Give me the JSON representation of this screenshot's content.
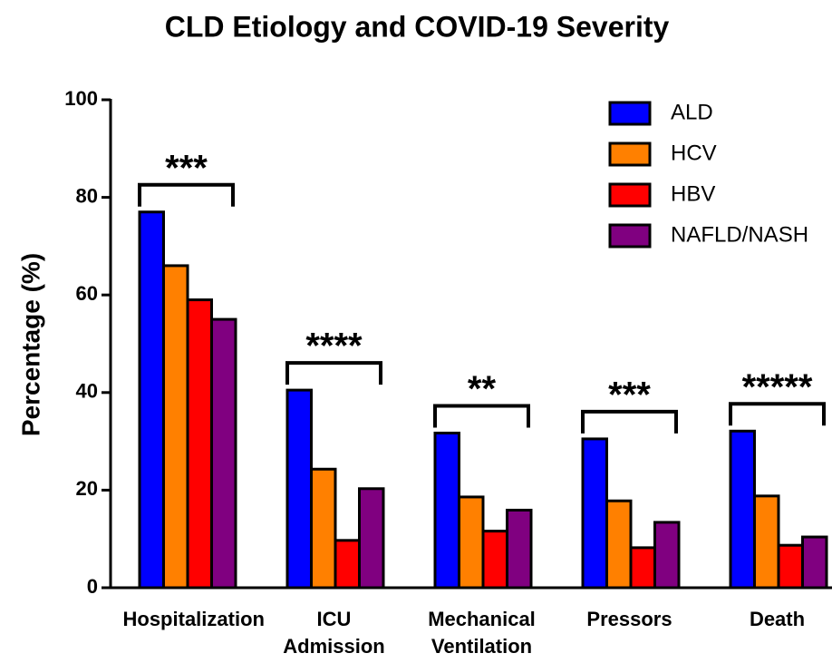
{
  "chart_data": {
    "type": "bar",
    "title": "CLD Etiology and COVID-19 Severity",
    "y_label": "Percentage (%)",
    "categories": [
      "Hospitalization",
      "ICU Admission",
      "Mechanical Ventilation",
      "Pressors",
      "Death"
    ],
    "series": [
      {
        "name": "ALD",
        "color": "#0000ff",
        "values": [
          77,
          40.5,
          31.7,
          30.5,
          32.1
        ]
      },
      {
        "name": "HCV",
        "color": "#ff8000",
        "values": [
          66,
          24.3,
          18.6,
          17.8,
          18.8
        ]
      },
      {
        "name": "HBV",
        "color": "#ff0000",
        "values": [
          59,
          9.7,
          11.6,
          8.2,
          8.7
        ]
      },
      {
        "name": "NAFLD/NASH",
        "color": "#800080",
        "values": [
          55,
          20.3,
          15.9,
          13.4,
          10.4
        ]
      }
    ],
    "annotations": [
      "***",
      "****",
      "**",
      "***",
      "*****"
    ],
    "ylim": [
      0,
      100
    ],
    "yticks": [
      0,
      20,
      40,
      60,
      80,
      100
    ],
    "legend": "upper right"
  }
}
